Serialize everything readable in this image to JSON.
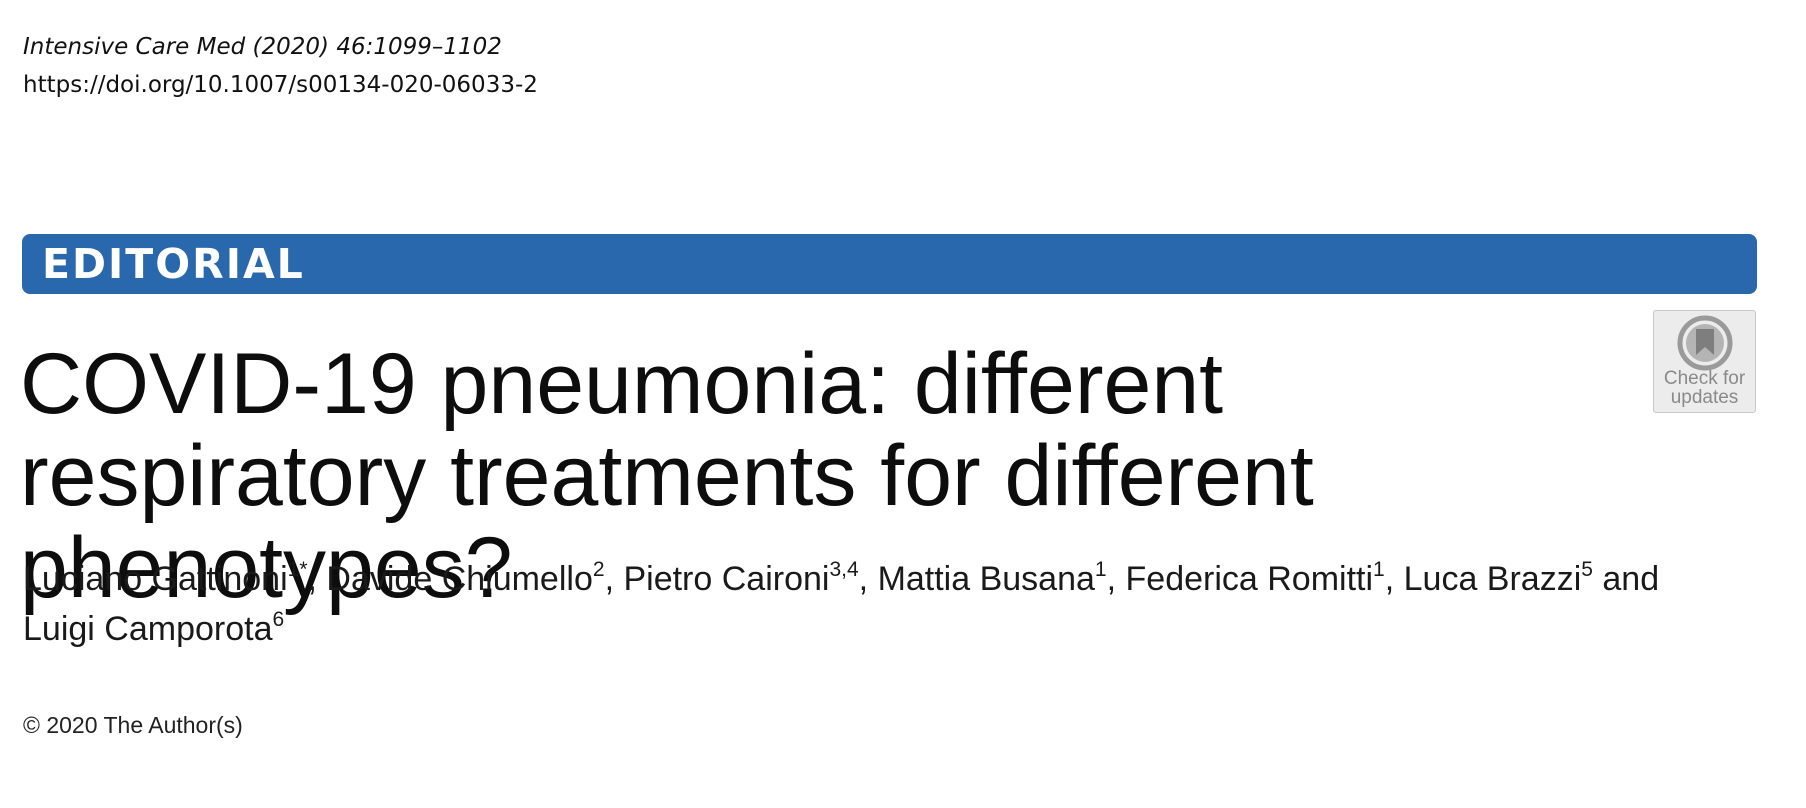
{
  "header": {
    "journal_citation": "Intensive Care Med (2020) 46:1099–1102",
    "doi": "https://doi.org/10.1007/s00134-020-06033-2"
  },
  "banner": {
    "label": "EDITORIAL",
    "color": "#2a68ad"
  },
  "badge": {
    "icon": "bookmark-icon",
    "line1": "Check for",
    "line2": "updates"
  },
  "article": {
    "title": "COVID-19 pneumonia: different respiratory treatments for different phenotypes?",
    "authors": [
      {
        "name": "Luciano Gattinoni",
        "sup": "1*",
        "sep": ", "
      },
      {
        "name": "Davide Chiumello",
        "sup": "2",
        "sep": ", "
      },
      {
        "name": "Pietro Caironi",
        "sup": "3,4",
        "sep": ", "
      },
      {
        "name": "Mattia Busana",
        "sup": "1",
        "sep": ", "
      },
      {
        "name": "Federica Romitti",
        "sup": "1",
        "sep": ", "
      },
      {
        "name": "Luca Brazzi",
        "sup": "5",
        "sep": " and "
      },
      {
        "name": "Luigi Camporota",
        "sup": "6",
        "sep": ""
      }
    ]
  },
  "footer": {
    "copyright": "© 2020 The Author(s)"
  }
}
